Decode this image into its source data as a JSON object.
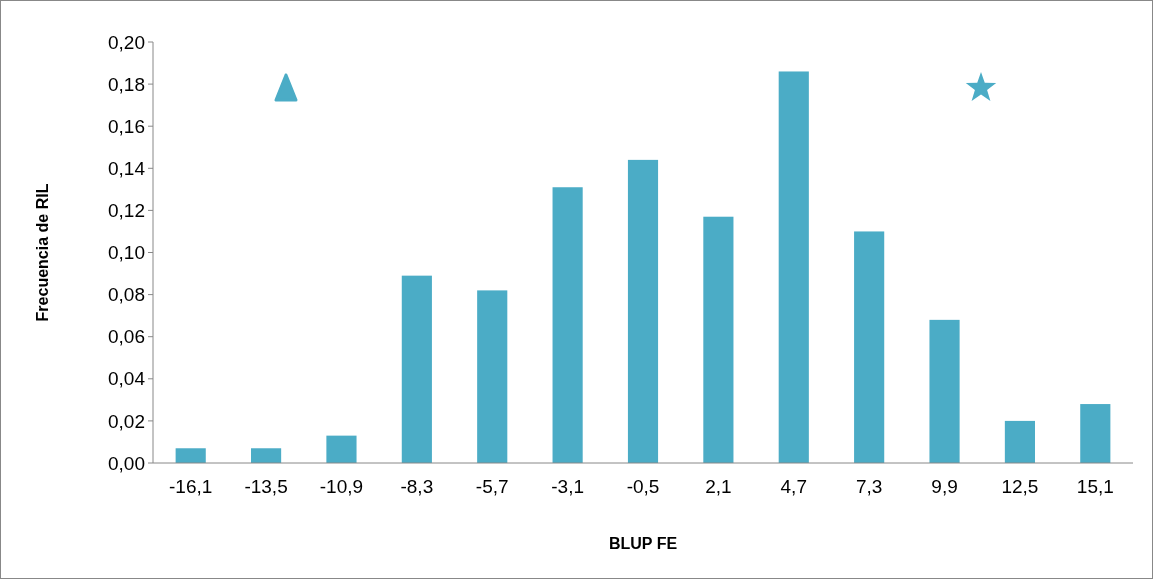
{
  "chart_data": {
    "type": "bar",
    "xlabel": "BLUP FE",
    "ylabel": "Frecuencia de RIL",
    "categories": [
      "-16,1",
      "-13,5",
      "-10,9",
      "-8,3",
      "-5,7",
      "-3,1",
      "-0,5",
      "2,1",
      "4,7",
      "7,3",
      "9,9",
      "12,5",
      "15,1"
    ],
    "values": [
      0.007,
      0.007,
      0.013,
      0.089,
      0.082,
      0.131,
      0.144,
      0.117,
      0.186,
      0.11,
      0.068,
      0.02,
      0.028
    ],
    "color": "#4bacc6",
    "ylim": [
      0,
      0.2
    ],
    "yticks": [
      {
        "value": 0,
        "label": "0,00"
      },
      {
        "value": 0.02,
        "label": "0,02"
      },
      {
        "value": 0.04,
        "label": "0,04"
      },
      {
        "value": 0.06,
        "label": "0,06"
      },
      {
        "value": 0.08,
        "label": "0,08"
      },
      {
        "value": 0.1,
        "label": "0,10"
      },
      {
        "value": 0.12,
        "label": "0,12"
      },
      {
        "value": 0.14,
        "label": "0,14"
      },
      {
        "value": 0.16,
        "label": "0,16"
      },
      {
        "value": 0.18,
        "label": "0,18"
      },
      {
        "value": 0.2,
        "label": "0,20"
      }
    ],
    "grid": false
  }
}
